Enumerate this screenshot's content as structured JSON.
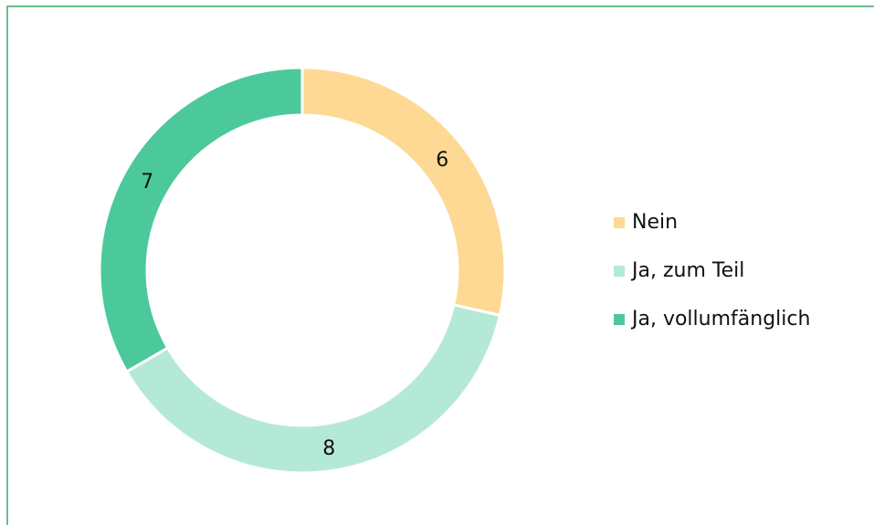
{
  "chart_data": {
    "type": "donut",
    "categories": [
      "Nein",
      "Ja, zum Teil",
      "Ja, vollumfänglich"
    ],
    "values": [
      6,
      8,
      7
    ],
    "colors": [
      "#fdd994",
      "#b5e9d7",
      "#4cc99b"
    ],
    "legend": "right"
  }
}
